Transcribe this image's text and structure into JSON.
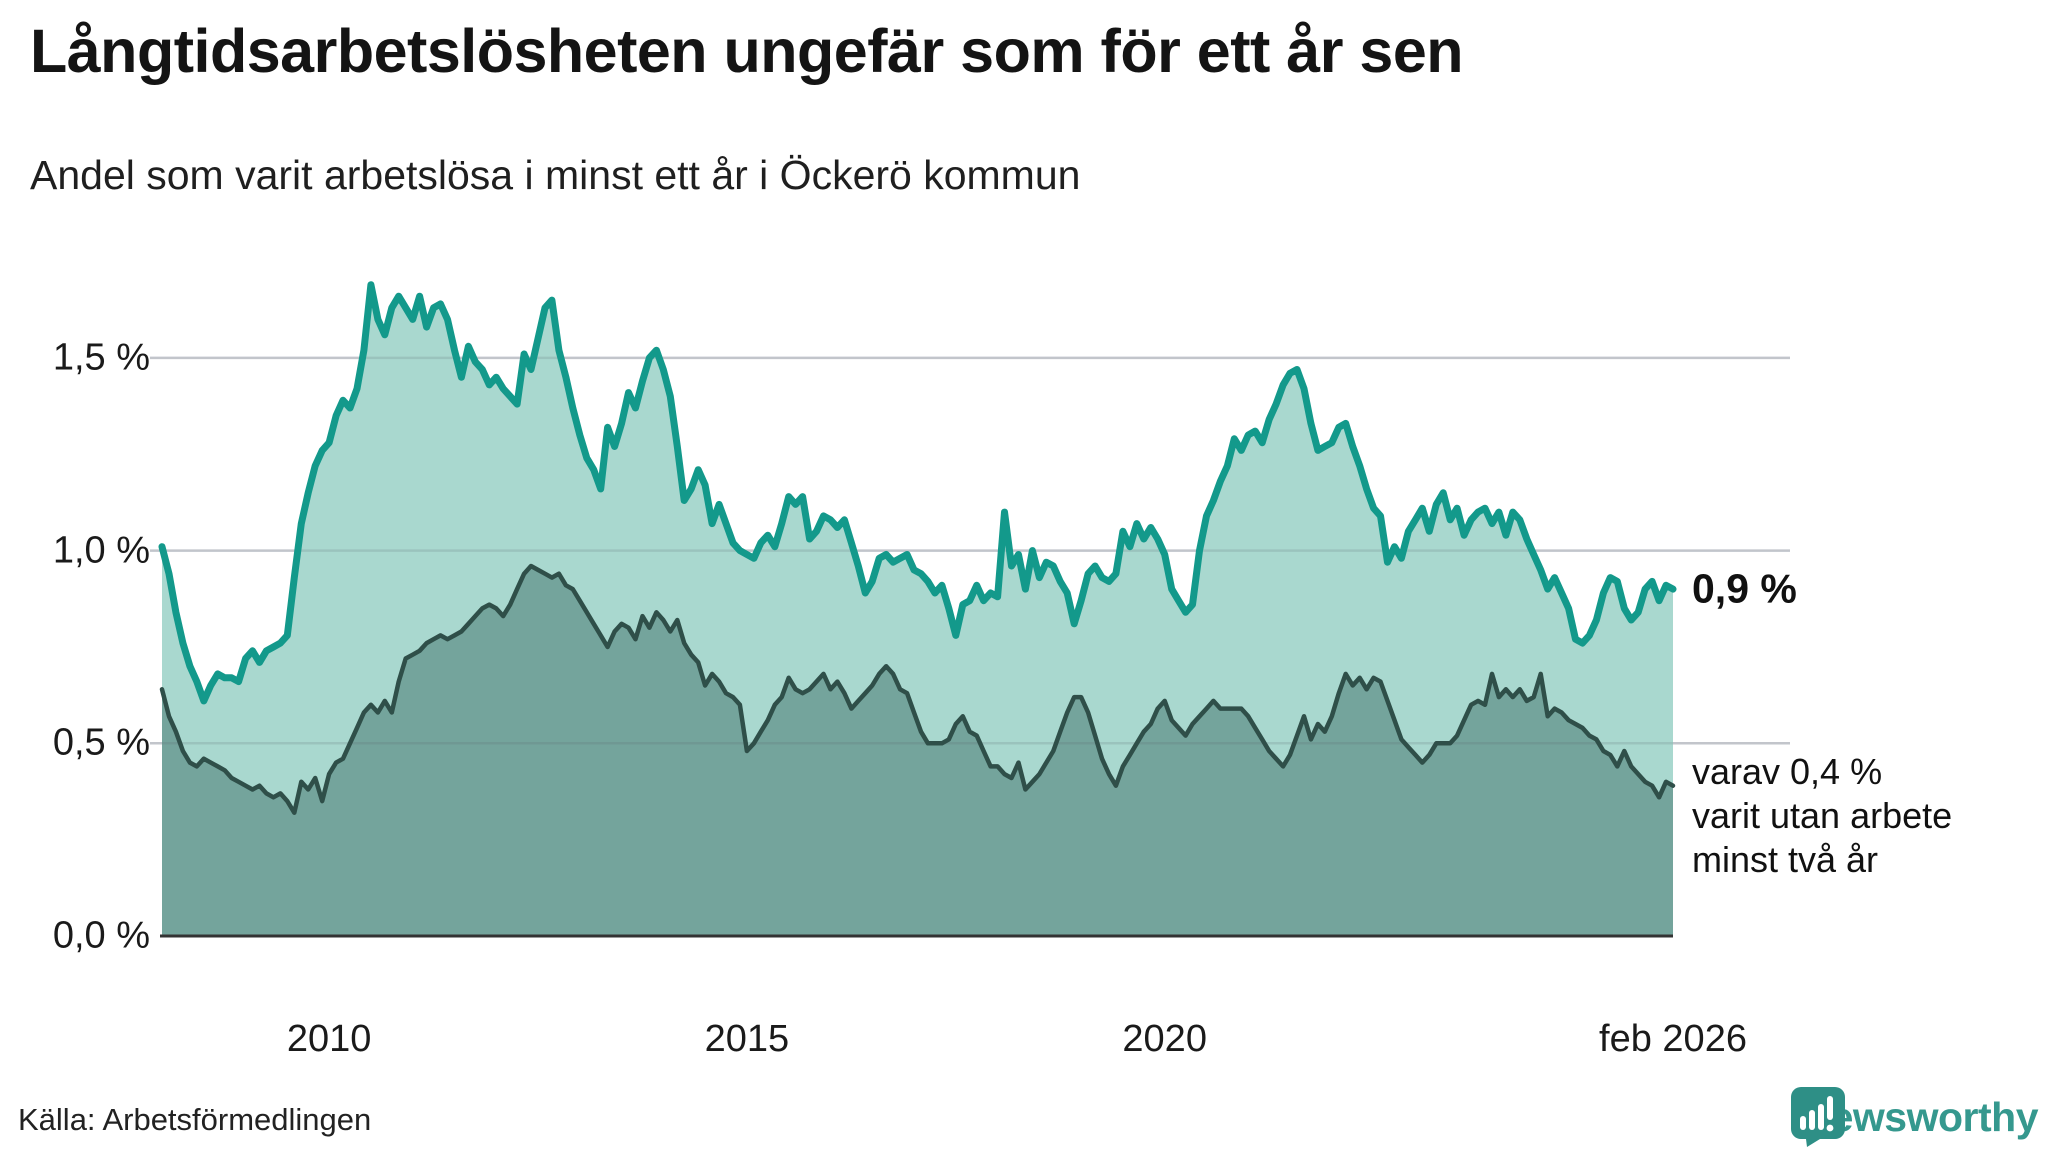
{
  "title": "Långtidsarbetslösheten ungefär som för ett år sen",
  "subtitle": "Andel som varit arbetslösa i minst ett år i Öckerö kommun",
  "source": "Källa: Arbetsförmedlingen",
  "branding": {
    "name": "Newsworthy",
    "icon": "bar-chart-speech-bubble-icon"
  },
  "annotations": {
    "latest_one_year": "0,9 %",
    "two_year_line1": "varav 0,4 %",
    "two_year_line2": "varit utan arbete",
    "two_year_line3": "minst två år"
  },
  "colors": {
    "line_one_year": "#13998b",
    "fill_one_year": "#a9d8cf",
    "line_two_year": "#2f4f49",
    "fill_two_year": "#74a49c",
    "gridline": "#d9dbe0",
    "gridline_over_fill": "rgba(90,100,110,0.18)",
    "baseline": "#333333",
    "text": "#1a1a1a"
  },
  "chart_data": {
    "type": "area",
    "title": "Långtidsarbetslösheten ungefär som för ett år sen",
    "subtitle": "Andel som varit arbetslösa i minst ett år i Öckerö kommun",
    "unit": "%",
    "x_start_year": 2008.0,
    "x_end_year": 2026.0833,
    "x_step": "month",
    "ylim": [
      0,
      1.75
    ],
    "grid": "horizontal",
    "y_axis_ticks": [
      {
        "label": "1,5 %",
        "value": 1.5
      },
      {
        "label": "1,0 %",
        "value": 1.0
      },
      {
        "label": "0,5 %",
        "value": 0.5
      },
      {
        "label": "0,0 %",
        "value": 0.0
      }
    ],
    "x_axis_ticks": [
      {
        "label": "2010",
        "year": 2010.0
      },
      {
        "label": "2015",
        "year": 2015.0
      },
      {
        "label": "2020",
        "year": 2020.0
      },
      {
        "label": "feb 2026",
        "year": 2026.0833
      }
    ],
    "series": [
      {
        "name": "Andel arbetslösa minst ett år",
        "latest_label": "0,9 %",
        "values": [
          1.01,
          0.94,
          0.84,
          0.76,
          0.7,
          0.66,
          0.61,
          0.65,
          0.68,
          0.67,
          0.67,
          0.66,
          0.72,
          0.74,
          0.71,
          0.74,
          0.75,
          0.76,
          0.78,
          0.93,
          1.07,
          1.15,
          1.22,
          1.26,
          1.28,
          1.35,
          1.39,
          1.37,
          1.42,
          1.52,
          1.69,
          1.6,
          1.56,
          1.63,
          1.66,
          1.63,
          1.6,
          1.66,
          1.58,
          1.63,
          1.64,
          1.6,
          1.52,
          1.45,
          1.53,
          1.49,
          1.47,
          1.43,
          1.45,
          1.42,
          1.4,
          1.38,
          1.51,
          1.47,
          1.55,
          1.63,
          1.65,
          1.52,
          1.45,
          1.37,
          1.3,
          1.24,
          1.21,
          1.16,
          1.32,
          1.27,
          1.33,
          1.41,
          1.37,
          1.44,
          1.5,
          1.52,
          1.47,
          1.4,
          1.27,
          1.13,
          1.16,
          1.21,
          1.17,
          1.07,
          1.12,
          1.07,
          1.02,
          1.0,
          0.99,
          0.98,
          1.02,
          1.04,
          1.01,
          1.07,
          1.14,
          1.12,
          1.14,
          1.03,
          1.05,
          1.09,
          1.08,
          1.06,
          1.08,
          1.02,
          0.96,
          0.89,
          0.92,
          0.98,
          0.99,
          0.97,
          0.98,
          0.99,
          0.95,
          0.94,
          0.92,
          0.89,
          0.91,
          0.85,
          0.78,
          0.86,
          0.87,
          0.91,
          0.87,
          0.89,
          0.88,
          1.1,
          0.96,
          0.99,
          0.9,
          1.0,
          0.93,
          0.97,
          0.96,
          0.92,
          0.89,
          0.81,
          0.87,
          0.94,
          0.96,
          0.93,
          0.92,
          0.94,
          1.05,
          1.01,
          1.07,
          1.03,
          1.06,
          1.03,
          0.99,
          0.9,
          0.87,
          0.84,
          0.86,
          1.0,
          1.09,
          1.13,
          1.18,
          1.22,
          1.29,
          1.26,
          1.3,
          1.31,
          1.28,
          1.34,
          1.38,
          1.43,
          1.46,
          1.47,
          1.42,
          1.33,
          1.26,
          1.27,
          1.28,
          1.32,
          1.33,
          1.27,
          1.22,
          1.16,
          1.11,
          1.09,
          0.97,
          1.01,
          0.98,
          1.05,
          1.08,
          1.11,
          1.05,
          1.12,
          1.15,
          1.08,
          1.11,
          1.04,
          1.08,
          1.1,
          1.11,
          1.07,
          1.1,
          1.04,
          1.1,
          1.08,
          1.03,
          0.99,
          0.95,
          0.9,
          0.93,
          0.89,
          0.85,
          0.77,
          0.76,
          0.78,
          0.82,
          0.89,
          0.93,
          0.92,
          0.85,
          0.82,
          0.84,
          0.9,
          0.92,
          0.87,
          0.91,
          0.9
        ]
      },
      {
        "name": "varav utan arbete minst två år",
        "latest_label": "varav 0,4 %",
        "values": [
          0.64,
          0.57,
          0.53,
          0.48,
          0.45,
          0.44,
          0.46,
          0.45,
          0.44,
          0.43,
          0.41,
          0.4,
          0.39,
          0.38,
          0.39,
          0.37,
          0.36,
          0.37,
          0.35,
          0.32,
          0.4,
          0.38,
          0.41,
          0.35,
          0.42,
          0.45,
          0.46,
          0.5,
          0.54,
          0.58,
          0.6,
          0.58,
          0.61,
          0.58,
          0.66,
          0.72,
          0.73,
          0.74,
          0.76,
          0.77,
          0.78,
          0.77,
          0.78,
          0.79,
          0.81,
          0.83,
          0.85,
          0.86,
          0.85,
          0.83,
          0.86,
          0.9,
          0.94,
          0.96,
          0.95,
          0.94,
          0.93,
          0.94,
          0.91,
          0.9,
          0.87,
          0.84,
          0.81,
          0.78,
          0.75,
          0.79,
          0.81,
          0.8,
          0.77,
          0.83,
          0.8,
          0.84,
          0.82,
          0.79,
          0.82,
          0.76,
          0.73,
          0.71,
          0.65,
          0.68,
          0.66,
          0.63,
          0.62,
          0.6,
          0.48,
          0.5,
          0.53,
          0.56,
          0.6,
          0.62,
          0.67,
          0.64,
          0.63,
          0.64,
          0.66,
          0.68,
          0.64,
          0.66,
          0.63,
          0.59,
          0.61,
          0.63,
          0.65,
          0.68,
          0.7,
          0.68,
          0.64,
          0.63,
          0.58,
          0.53,
          0.5,
          0.5,
          0.5,
          0.51,
          0.55,
          0.57,
          0.53,
          0.52,
          0.48,
          0.44,
          0.44,
          0.42,
          0.41,
          0.45,
          0.38,
          0.4,
          0.42,
          0.45,
          0.48,
          0.53,
          0.58,
          0.62,
          0.62,
          0.58,
          0.52,
          0.46,
          0.42,
          0.39,
          0.44,
          0.47,
          0.5,
          0.53,
          0.55,
          0.59,
          0.61,
          0.56,
          0.54,
          0.52,
          0.55,
          0.57,
          0.59,
          0.61,
          0.59,
          0.59,
          0.59,
          0.59,
          0.57,
          0.54,
          0.51,
          0.48,
          0.46,
          0.44,
          0.47,
          0.52,
          0.57,
          0.51,
          0.55,
          0.53,
          0.57,
          0.63,
          0.68,
          0.65,
          0.67,
          0.64,
          0.67,
          0.66,
          0.61,
          0.56,
          0.51,
          0.49,
          0.47,
          0.45,
          0.47,
          0.5,
          0.5,
          0.5,
          0.52,
          0.56,
          0.6,
          0.61,
          0.6,
          0.68,
          0.62,
          0.64,
          0.62,
          0.64,
          0.61,
          0.62,
          0.68,
          0.57,
          0.59,
          0.58,
          0.56,
          0.55,
          0.54,
          0.52,
          0.51,
          0.48,
          0.47,
          0.44,
          0.48,
          0.44,
          0.42,
          0.4,
          0.39,
          0.36,
          0.4,
          0.39
        ]
      }
    ]
  }
}
